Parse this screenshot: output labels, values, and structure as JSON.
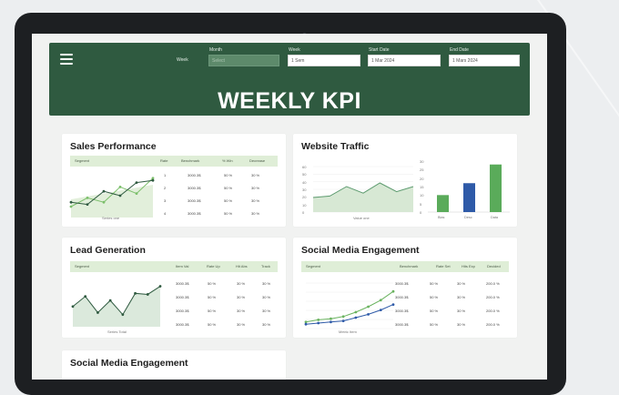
{
  "header": {
    "filters": [
      {
        "label": "Month",
        "value": "Select"
      },
      {
        "label": "Week",
        "value": "1 Sem"
      },
      {
        "label": "Start Date",
        "value": "1 Mar 2024"
      },
      {
        "label": "End Date",
        "value": "1 Mars 2024"
      }
    ],
    "week_side_label": "Week",
    "title": "WEEKLY KPI"
  },
  "sales": {
    "title": "Sales Performance",
    "headers": [
      "Segment",
      "Rate",
      "Benchmark",
      "% Win",
      "Decrease"
    ],
    "rows": [
      {
        "n": "1",
        "v": "3000.3$",
        "p": "50 %",
        "d": "30 %"
      },
      {
        "n": "2",
        "v": "3000.3$",
        "p": "50 %",
        "d": "30 %"
      },
      {
        "n": "3",
        "v": "3000.3$",
        "p": "50 %",
        "d": "30 %"
      },
      {
        "n": "4",
        "v": "3000.3$",
        "p": "50 %",
        "d": "30 %"
      }
    ],
    "caption": "Series one"
  },
  "traffic": {
    "title": "Website Traffic",
    "caption": "Value one",
    "line_y_ticks": [
      "60",
      "50",
      "40",
      "30",
      "20",
      "10",
      "0"
    ],
    "bar_y_ticks": [
      "30",
      "25",
      "20",
      "15",
      "10",
      "5",
      "0"
    ],
    "bar_labels": [
      "Bias",
      "Desc",
      "Data"
    ]
  },
  "lead": {
    "title": "Lead Generation",
    "headers": [
      "Segment",
      "Item Val",
      "Rate Up",
      "Hit Abs",
      "Track"
    ],
    "rows": [
      {
        "v": "3000.3$",
        "p": "50 %",
        "q": "30 %",
        "r": "30 %"
      },
      {
        "v": "3000.3$",
        "p": "50 %",
        "q": "30 %",
        "r": "30 %"
      },
      {
        "v": "3000.3$",
        "p": "50 %",
        "q": "30 %",
        "r": "30 %"
      },
      {
        "v": "3000.3$",
        "p": "50 %",
        "q": "30 %",
        "r": "30 %"
      }
    ],
    "caption": "Series Total"
  },
  "social": {
    "title": "Social Media Engagement",
    "headers": [
      "Segment",
      "Benchmark",
      "Rate Set",
      "Hits Exp",
      "Decided"
    ],
    "rows": [
      {
        "v": "3000.3$",
        "p": "50 %",
        "q": "30 %",
        "r": "200.0 %"
      },
      {
        "v": "3000.3$",
        "p": "50 %",
        "q": "30 %",
        "r": "200.0 %"
      },
      {
        "v": "3000.3$",
        "p": "50 %",
        "q": "30 %",
        "r": "200.0 %"
      },
      {
        "v": "3000.3$",
        "p": "50 %",
        "q": "30 %",
        "r": "200.0 %"
      }
    ],
    "caption": "Metric Item"
  },
  "social2": {
    "title": "Social Media Engagement"
  },
  "colors": {
    "header_green": "#2f5a40",
    "light_green": "#dfeed7",
    "bar_green": "#5aab5a",
    "bar_blue": "#2e5aa8",
    "line_dark": "#2f5a40"
  },
  "chart_data": [
    {
      "type": "line",
      "series": [
        {
          "values": [
            10,
            18,
            14,
            28,
            22,
            36
          ]
        },
        {
          "values": [
            14,
            12,
            24,
            20,
            32,
            34
          ]
        }
      ]
    },
    {
      "type": "area",
      "y_ticks": [
        "60",
        "50",
        "40",
        "30",
        "20",
        "10",
        "0"
      ],
      "series": [
        {
          "values": [
            20,
            22,
            35,
            26,
            40,
            28,
            35
          ]
        }
      ]
    },
    {
      "type": "bar",
      "categories": [
        "Bias",
        "Desc",
        "Data"
      ],
      "values": [
        10,
        17,
        28
      ],
      "ylim": [
        0,
        30
      ]
    },
    {
      "type": "area",
      "series": [
        {
          "values": [
            20,
            30,
            14,
            26,
            12,
            33,
            32,
            40
          ]
        }
      ]
    },
    {
      "type": "line",
      "series": [
        {
          "values": [
            6,
            8,
            9,
            11,
            15,
            20,
            26,
            34
          ]
        },
        {
          "values": [
            4,
            5,
            6,
            7,
            10,
            13,
            17,
            22
          ]
        }
      ]
    }
  ]
}
